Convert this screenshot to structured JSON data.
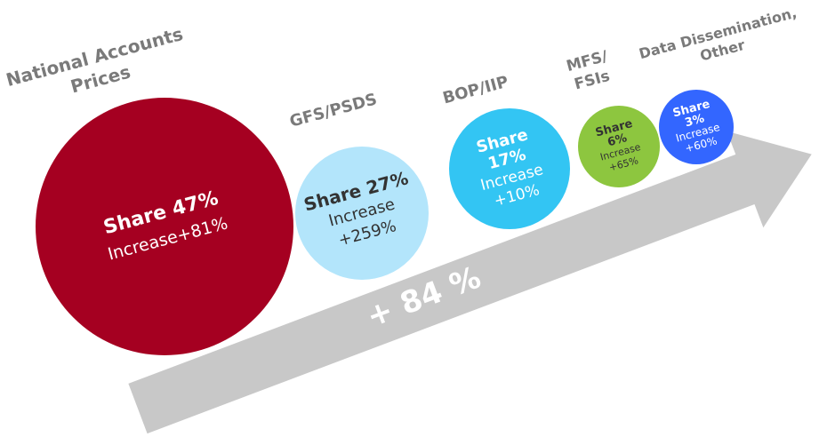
{
  "arrow_label": "+ 84 %",
  "nodes": [
    {
      "title": [
        "National Accounts",
        "Prices"
      ],
      "lines": [
        "Share 47%",
        "Increase+81%"
      ]
    },
    {
      "title": [
        "GFS/PSDS"
      ],
      "lines": [
        "Share 27%",
        "Increase",
        "+259%"
      ]
    },
    {
      "title": [
        "BOP/IIP"
      ],
      "lines": [
        "Share",
        "17%",
        "Increase",
        "+10%"
      ]
    },
    {
      "title": [
        "MFS/",
        "FSIs"
      ],
      "lines": [
        "Share",
        "6%",
        "Increase",
        "+65%"
      ]
    },
    {
      "title": [
        "Data Dissemination,",
        "Other"
      ],
      "lines": [
        "Share",
        "3%",
        "Increase",
        "+60%"
      ]
    }
  ]
}
